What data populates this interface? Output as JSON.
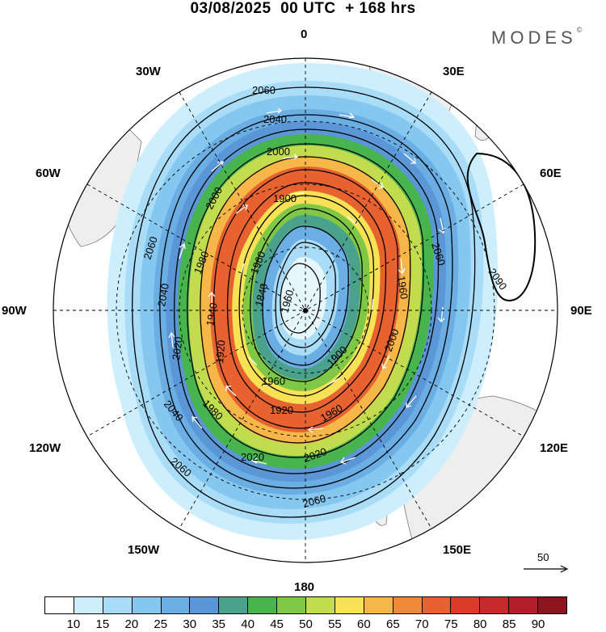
{
  "header": {
    "title": "03/08/2025  00 UTC  + 168 hrs"
  },
  "logo": {
    "text": "MODES",
    "mark": "©"
  },
  "longitude_labels": {
    "lon_0": "0",
    "lon_30e": "30E",
    "lon_60e": "60E",
    "lon_90e": "90E",
    "lon_120e": "120E",
    "lon_150e": "150E",
    "lon_180": "180",
    "lon_150w": "150W",
    "lon_120w": "120W",
    "lon_90w": "90W",
    "lon_60w": "60W",
    "lon_30w": "30W"
  },
  "contour_labels": {
    "c2060_top": "2060",
    "c2040_top": "2040",
    "c2000_top": "2000",
    "c2000_nw": "2000",
    "c1900_top": "1900",
    "c1980_nw": "1980",
    "c1960_nw": "1960",
    "c2060_w": "2060",
    "c2040_w": "2040",
    "c1940_w": "1940",
    "c1840_w": "1840",
    "c1960_in": "1960",
    "c2020_w": "2020",
    "c1920_w": "1920",
    "c2060_e": "2060",
    "c2090_e": "2090",
    "c1960_e": "1960",
    "c1900_se": "1900",
    "c2000_se": "2000",
    "c1960_s": "1960",
    "c1980_sw": "1980",
    "c1920_s": "1920",
    "c1960_s2": "1960",
    "c2040_sw": "2040",
    "c2060_sw": "2060",
    "c2020_s": "2020",
    "c2020_s2": "2020",
    "c2060_s": "2060"
  },
  "scale_vector": {
    "label": "50"
  },
  "colorbar": {
    "colors": [
      "#ffffff",
      "#cdeefc",
      "#a9dcf6",
      "#86c7ef",
      "#6aaee4",
      "#5b97d6",
      "#4aa18c",
      "#48b44e",
      "#7fc845",
      "#c2dc4e",
      "#f7e255",
      "#f6b748",
      "#ef8a3a",
      "#e8622f",
      "#dc3b29",
      "#c8292a",
      "#b21e2a",
      "#8c1520"
    ],
    "tick_labels": [
      "10",
      "15",
      "20",
      "25",
      "30",
      "35",
      "40",
      "45",
      "50",
      "55",
      "60",
      "65",
      "70",
      "75",
      "80",
      "85",
      "90"
    ]
  }
}
